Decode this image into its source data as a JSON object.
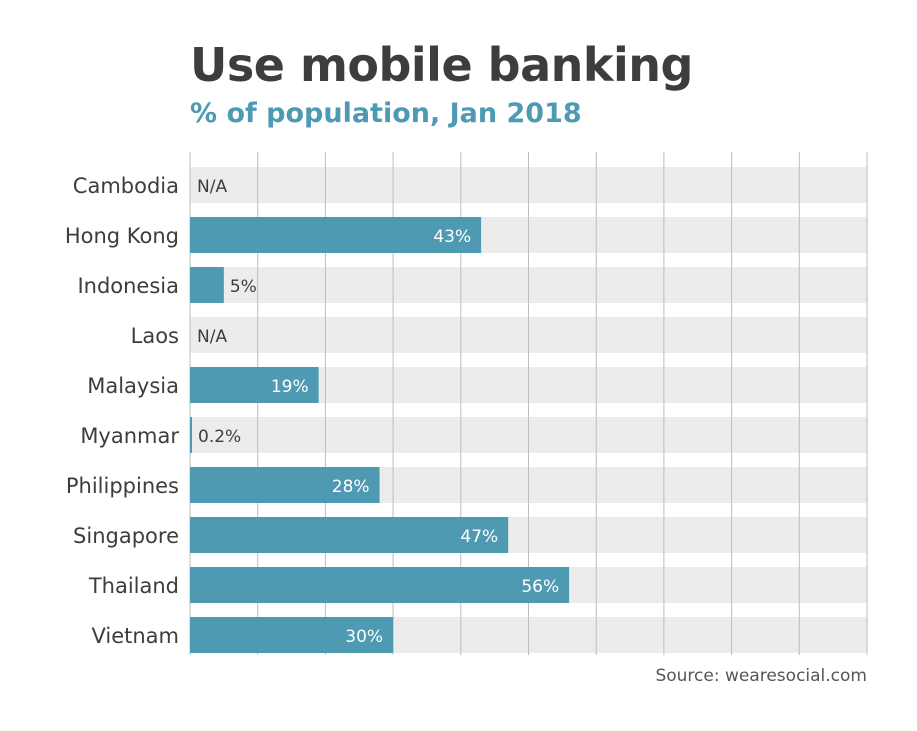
{
  "chart_data": {
    "type": "bar",
    "orientation": "horizontal",
    "title": "Use mobile banking",
    "subtitle": "% of population, Jan 2018",
    "categories": [
      "Cambodia",
      "Hong Kong",
      "Indonesia",
      "Laos",
      "Malaysia",
      "Myanmar",
      "Philippines",
      "Singapore",
      "Thailand",
      "Vietnam"
    ],
    "values": [
      null,
      43,
      5,
      null,
      19,
      0.2,
      28,
      47,
      56,
      30
    ],
    "value_labels": [
      "N/A",
      "43%",
      "5%",
      "N/A",
      "19%",
      "0.2%",
      "28%",
      "47%",
      "56%",
      "30%"
    ],
    "xlim": [
      0,
      100
    ],
    "grid": true,
    "bar_color": "#4e9ab3",
    "track_color": "#ececec",
    "source": "Source: wearesocial.com"
  }
}
